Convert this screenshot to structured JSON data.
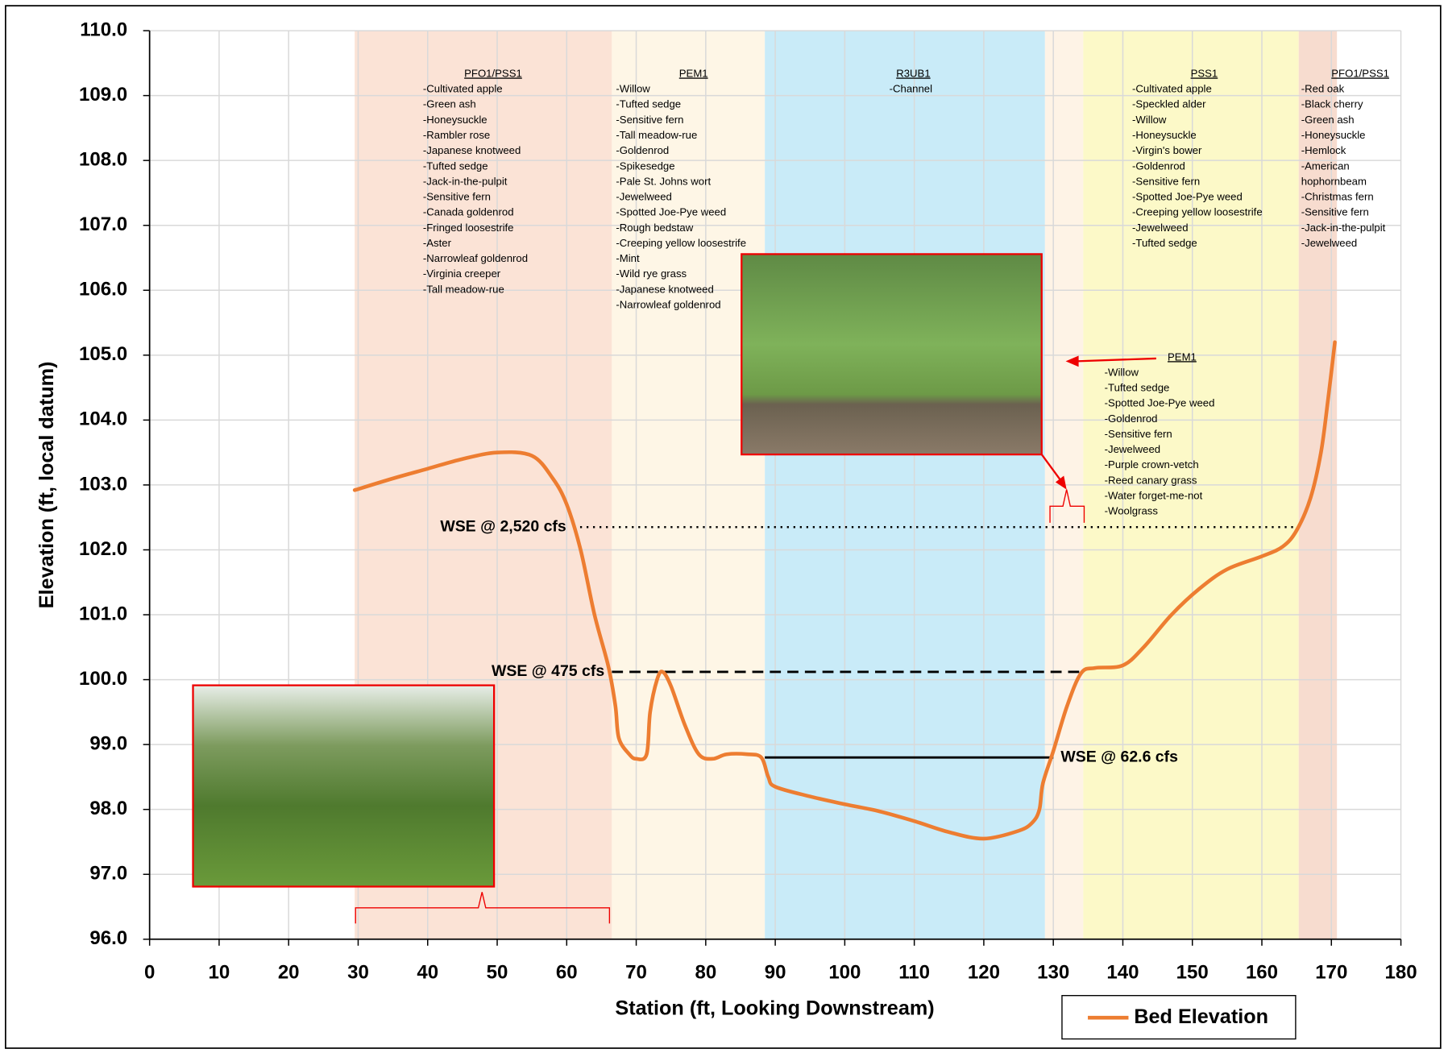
{
  "chart_data": {
    "type": "line",
    "x_label": "Station (ft, Looking Downstream)",
    "y_label": "Elevation (ft, local datum)",
    "xlim": [
      0,
      180
    ],
    "ylim": [
      96,
      110
    ],
    "xticks": [
      0,
      10,
      20,
      30,
      40,
      50,
      60,
      70,
      80,
      90,
      100,
      110,
      120,
      130,
      140,
      150,
      160,
      170,
      180
    ],
    "yticks": [
      {
        "value": 96,
        "label": "96.0"
      },
      {
        "value": 97,
        "label": "97.0"
      },
      {
        "value": 98,
        "label": "98.0"
      },
      {
        "value": 99,
        "label": "99.0"
      },
      {
        "value": 100,
        "label": "100.0"
      },
      {
        "value": 101,
        "label": "101.0"
      },
      {
        "value": 102,
        "label": "102.0"
      },
      {
        "value": 103,
        "label": "103.0"
      },
      {
        "value": 104,
        "label": "104.0"
      },
      {
        "value": 105,
        "label": "105.0"
      },
      {
        "value": 106,
        "label": "106.0"
      },
      {
        "value": 107,
        "label": "107.0"
      },
      {
        "value": 108,
        "label": "108.0"
      },
      {
        "value": 109,
        "label": "109.0"
      },
      {
        "value": 110,
        "label": "110.0"
      }
    ],
    "grid": true,
    "legend": "bottom-right",
    "series": [
      {
        "name": "Bed Elevation",
        "color": "#ed7d31",
        "x": [
          29.5,
          35,
          40,
          45,
          50,
          55,
          58,
          60,
          62,
          64,
          66,
          67,
          67.5,
          69,
          70,
          71.5,
          72,
          73,
          73.8,
          75,
          77,
          79,
          81,
          83,
          86,
          88,
          89,
          90,
          95,
          100,
          105,
          110,
          115,
          120,
          125,
          127,
          128,
          128.5,
          130,
          132,
          134,
          136,
          140,
          143,
          147,
          151,
          155,
          160,
          163,
          165,
          167,
          168.5,
          169.5,
          170.5
        ],
        "values": [
          102.92,
          103.1,
          103.25,
          103.4,
          103.5,
          103.45,
          103.1,
          102.7,
          102.0,
          101.0,
          100.2,
          99.6,
          99.1,
          98.85,
          98.78,
          98.85,
          99.5,
          100.0,
          100.12,
          99.9,
          99.3,
          98.85,
          98.78,
          98.85,
          98.85,
          98.8,
          98.5,
          98.35,
          98.2,
          98.08,
          97.97,
          97.82,
          97.65,
          97.55,
          97.67,
          97.8,
          98.0,
          98.4,
          98.9,
          99.6,
          100.1,
          100.18,
          100.22,
          100.5,
          101.0,
          101.4,
          101.7,
          101.9,
          102.05,
          102.3,
          102.8,
          103.5,
          104.3,
          105.2
        ]
      }
    ],
    "water_levels": [
      {
        "name": "WSE @ 2,520 cfs",
        "value": 102.35,
        "x": [
          61,
          165
        ],
        "style": "dotted"
      },
      {
        "name": "WSE @ 475 cfs",
        "value": 100.12,
        "x": [
          66.5,
          134
        ],
        "style": "dashed"
      },
      {
        "name": "WSE @ 62.6 cfs",
        "value": 98.8,
        "x": [
          88.5,
          130
        ],
        "style": "solid"
      }
    ],
    "zones": [
      {
        "label": "PFO1/PSS1",
        "x": [
          29.5,
          66.5
        ],
        "color": "#fbe3d6",
        "items": [
          "-Cultivated apple",
          "-Green ash",
          "-Honeysuckle",
          "-Rambler rose",
          "-Japanese knotweed",
          "-Tufted sedge",
          "-Jack-in-the-pulpit",
          "-Sensitive fern",
          "-Canada goldenrod",
          "-Fringed loosestrife",
          "-Aster",
          "-Narrowleaf goldenrod",
          "-Virginia creeper",
          "-Tall meadow-rue"
        ]
      },
      {
        "label": "PEM1",
        "x": [
          66.5,
          88.5
        ],
        "color": "#fef6e6",
        "items": [
          "-Willow",
          "-Tufted sedge",
          "-Sensitive fern",
          "-Tall meadow-rue",
          "-Goldenrod",
          "-Spikesedge",
          "-Pale St. Johns wort",
          "-Jewelweed",
          "-Spotted Joe-Pye weed",
          "-Rough bedstaw",
          "-Creeping yellow loosestrife",
          "-Mint",
          "-Wild rye grass",
          "-Japanese knotweed",
          "-Narrowleaf goldenrod"
        ]
      },
      {
        "label": "R3UB1",
        "x": [
          88.5,
          128.8
        ],
        "color": "#c9ebf8",
        "items": [
          "-Channel"
        ]
      },
      {
        "label": "PEM1",
        "x": [
          128.8,
          134.3
        ],
        "color": "#fef3e6",
        "items": [
          "-Willow",
          "-Tufted sedge",
          "-Spotted Joe-Pye weed",
          "-Goldenrod",
          "-Sensitive fern",
          "-Jewelweed",
          "-Purple crown-vetch",
          "-Reed canary grass",
          "-Water forget-me-not",
          "-Woolgrass"
        ]
      },
      {
        "label": "PSS1",
        "x": [
          134.3,
          165.3
        ],
        "color": "#fcf9c8",
        "items": [
          "-Cultivated apple",
          "-Speckled alder",
          "-Willow",
          "-Honeysuckle",
          "-Virgin's bower",
          "-Goldenrod",
          "-Sensitive fern",
          "-Spotted Joe-Pye weed",
          "-Creeping yellow loosestrife",
          "-Jewelweed",
          "-Tufted sedge"
        ]
      },
      {
        "label": "PFO1/PSS1",
        "x": [
          165.3,
          170.8
        ],
        "color": "#f7dccf",
        "items": [
          "-Red oak",
          "-Black cherry",
          "-Green ash",
          "-Honeysuckle",
          "-Hemlock",
          "-American",
          "hophornbeam",
          "-Christmas fern",
          "-Sensitive fern",
          "-Jack-in-the-pulpit",
          "-Jewelweed"
        ]
      }
    ]
  }
}
